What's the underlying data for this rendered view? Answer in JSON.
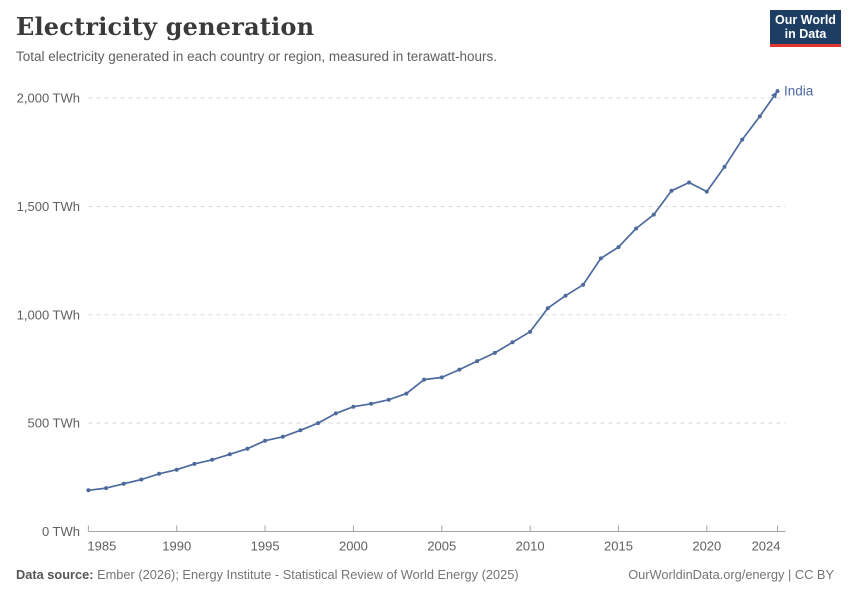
{
  "header": {
    "title": "Electricity generation",
    "subtitle": "Total electricity generated in each country or region, measured in terawatt-hours.",
    "logo": {
      "line1": "Our World",
      "line2": "in Data",
      "bg_color": "#1d3d63",
      "accent_color": "#e0362c"
    }
  },
  "chart_data": {
    "type": "line",
    "title": "Electricity generation",
    "xlabel": "",
    "ylabel": "TWh",
    "xlim": [
      1985,
      2024.5
    ],
    "ylim": [
      0,
      2000
    ],
    "grid": "horizontal dashed",
    "legend_position": "end-of-line label",
    "x_ticks": [
      1985,
      1990,
      1995,
      2000,
      2005,
      2010,
      2015,
      2020,
      2024
    ],
    "y_ticks": [
      0,
      500,
      1000,
      1500,
      2000
    ],
    "y_tick_labels": [
      "0 TWh",
      "500 TWh",
      "1,000 TWh",
      "1,500 TWh",
      "2,000 TWh"
    ],
    "x": [
      1985,
      1986,
      1987,
      1988,
      1989,
      1990,
      1991,
      1992,
      1993,
      1994,
      1995,
      1996,
      1997,
      1998,
      1999,
      2000,
      2001,
      2002,
      2003,
      2004,
      2005,
      2006,
      2007,
      2008,
      2009,
      2010,
      2011,
      2012,
      2013,
      2014,
      2015,
      2016,
      2017,
      2018,
      2019,
      2020,
      2021,
      2022,
      2023,
      2024
    ],
    "series": [
      {
        "name": "India",
        "color": "#4c6a9c",
        "values": [
          190,
          200,
          220,
          240,
          266,
          285,
          312,
          331,
          356,
          382,
          419,
          437,
          467,
          500,
          545,
          576,
          589,
          608,
          636,
          701,
          711,
          747,
          786,
          824,
          873,
          922,
          1030,
          1088,
          1138,
          1260,
          1312,
          1398,
          1462,
          1572,
          1610,
          1568,
          1682,
          1808,
          1915,
          2032
        ]
      }
    ],
    "colors": {
      "gridline": "#d9d9d9",
      "axis": "#a5a5a5",
      "tick_label": "#606060"
    }
  },
  "footer": {
    "source_label": "Data source:",
    "source_text": " Ember (2026); Energy Institute - Statistical Review of World Energy (2025)",
    "credit": "OurWorldinData.org/energy | CC BY"
  }
}
